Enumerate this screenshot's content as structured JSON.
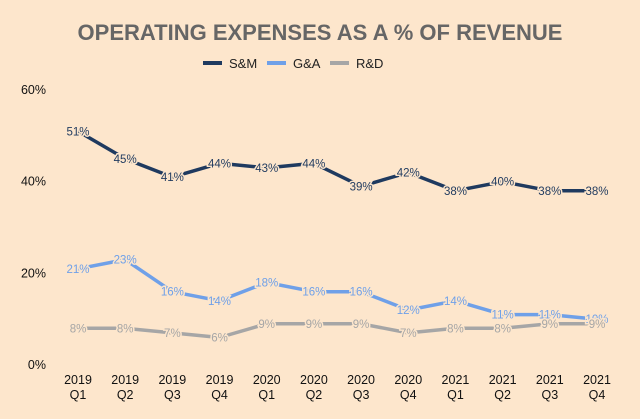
{
  "chart_data": {
    "type": "line",
    "title": "OPERATING EXPENSES AS A % OF REVENUE",
    "xlabel": "",
    "ylabel": "",
    "ylim": [
      0,
      60
    ],
    "yticks": [
      0,
      20,
      40,
      60
    ],
    "ytick_labels": [
      "0%",
      "20%",
      "40%",
      "60%"
    ],
    "grid": false,
    "legend_position": "top-center",
    "categories": [
      {
        "year": "2019",
        "quarter": "Q1"
      },
      {
        "year": "2019",
        "quarter": "Q2"
      },
      {
        "year": "2019",
        "quarter": "Q3"
      },
      {
        "year": "2019",
        "quarter": "Q4"
      },
      {
        "year": "2020",
        "quarter": "Q1"
      },
      {
        "year": "2020",
        "quarter": "Q2"
      },
      {
        "year": "2020",
        "quarter": "Q3"
      },
      {
        "year": "2020",
        "quarter": "Q4"
      },
      {
        "year": "2021",
        "quarter": "Q1"
      },
      {
        "year": "2021",
        "quarter": "Q2"
      },
      {
        "year": "2021",
        "quarter": "Q3"
      },
      {
        "year": "2021",
        "quarter": "Q4"
      }
    ],
    "series": [
      {
        "key": "sm",
        "name": "S&M",
        "color": "#1f3a5f",
        "values": [
          51,
          45,
          41,
          44,
          43,
          44,
          39,
          42,
          38,
          40,
          38,
          38
        ],
        "labels": [
          "51%",
          "45%",
          "41%",
          "44%",
          "43%",
          "44%",
          "39%",
          "42%",
          "38%",
          "40%",
          "38%",
          "38%"
        ]
      },
      {
        "key": "ga",
        "name": "G&A",
        "color": "#6fa0e8",
        "values": [
          21,
          23,
          16,
          14,
          18,
          16,
          16,
          12,
          14,
          11,
          11,
          10
        ],
        "labels": [
          "21%",
          "23%",
          "16%",
          "14%",
          "18%",
          "16%",
          "16%",
          "12%",
          "14%",
          "11%",
          "11%",
          "10%"
        ]
      },
      {
        "key": "rd",
        "name": "R&D",
        "color": "#a6a6a6",
        "values": [
          8,
          8,
          7,
          6,
          9,
          9,
          9,
          7,
          8,
          8,
          9,
          9
        ],
        "labels": [
          "8%",
          "8%",
          "7%",
          "6%",
          "9%",
          "9%",
          "9%",
          "7%",
          "8%",
          "8%",
          "9%",
          "9%"
        ]
      }
    ]
  }
}
